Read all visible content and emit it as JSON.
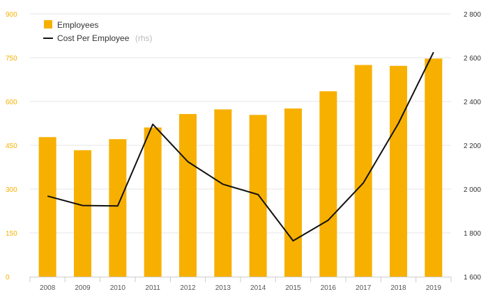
{
  "chart_data": {
    "type": "bar+line",
    "categories": [
      "2008",
      "2009",
      "2010",
      "2011",
      "2012",
      "2013",
      "2014",
      "2015",
      "2016",
      "2017",
      "2018",
      "2019"
    ],
    "series": [
      {
        "name": "Employees",
        "type": "bar",
        "axis": "left",
        "color": "#f7b000",
        "values": [
          478,
          433,
          471,
          511,
          557,
          573,
          554,
          576,
          635,
          725,
          722,
          747
        ]
      },
      {
        "name": "Cost Per Employee",
        "type": "line",
        "axis": "right",
        "color": "#111111",
        "values": [
          1968,
          1925,
          1923,
          2296,
          2125,
          2022,
          1975,
          1764,
          1858,
          2028,
          2300,
          2625
        ]
      }
    ],
    "y_left": {
      "min": 0,
      "max": 900,
      "ticks": [
        "0",
        "150",
        "300",
        "450",
        "600",
        "750",
        "900"
      ]
    },
    "y_right": {
      "min": 1600,
      "max": 2800,
      "ticks": [
        "1 600",
        "1 800",
        "2 000",
        "2 200",
        "2 400",
        "2 600",
        "2 800"
      ]
    },
    "legend": {
      "placement": "top-left",
      "items": [
        {
          "label": "Employees",
          "note": ""
        },
        {
          "label": "Cost Per Employee",
          "note": "(rhs)"
        }
      ]
    },
    "grid": true
  }
}
